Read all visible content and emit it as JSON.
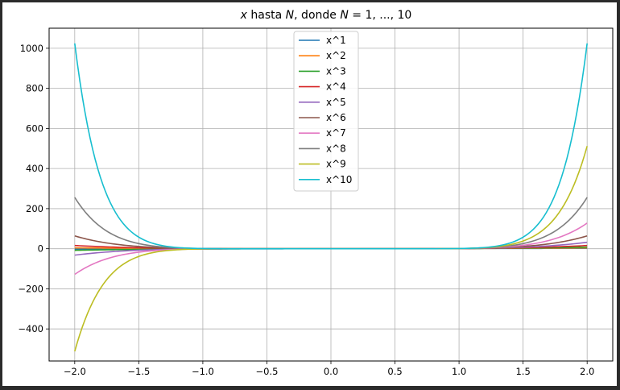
{
  "chart_data": {
    "type": "line",
    "title": {
      "var_x": "x",
      "mid1": " hasta ",
      "var_N": "N",
      "mid2": ", donde ",
      "var_N2": "N",
      "tail": " = 1, ..., 10"
    },
    "xlabel": "",
    "ylabel": "",
    "xlim": [
      -2.2,
      2.2
    ],
    "ylim": [
      -560,
      1100
    ],
    "x_range": [
      -2.0,
      2.0
    ],
    "exponents": [
      1,
      2,
      3,
      4,
      5,
      6,
      7,
      8,
      9,
      10
    ],
    "x_ticks": [
      -2.0,
      -1.5,
      -1.0,
      -0.5,
      0.0,
      0.5,
      1.0,
      1.5,
      2.0
    ],
    "x_tick_labels": [
      "−2.0",
      "−1.5",
      "−1.0",
      "−0.5",
      "0.0",
      "0.5",
      "1.0",
      "1.5",
      "2.0"
    ],
    "y_ticks": [
      -400,
      -200,
      0,
      200,
      400,
      600,
      800,
      1000
    ],
    "y_tick_labels": [
      "−400",
      "−200",
      "0",
      "200",
      "400",
      "600",
      "800",
      "1000"
    ],
    "grid": true,
    "legend_position": "top-center",
    "series": [
      {
        "name": "x^1",
        "exponent": 1,
        "color": "#1f77b4"
      },
      {
        "name": "x^2",
        "exponent": 2,
        "color": "#ff7f0e"
      },
      {
        "name": "x^3",
        "exponent": 3,
        "color": "#2ca02c"
      },
      {
        "name": "x^4",
        "exponent": 4,
        "color": "#d62728"
      },
      {
        "name": "x^5",
        "exponent": 5,
        "color": "#9467bd"
      },
      {
        "name": "x^6",
        "exponent": 6,
        "color": "#8c564b"
      },
      {
        "name": "x^7",
        "exponent": 7,
        "color": "#e377c2"
      },
      {
        "name": "x^8",
        "exponent": 8,
        "color": "#7f7f7f"
      },
      {
        "name": "x^9",
        "exponent": 9,
        "color": "#bcbd22"
      },
      {
        "name": "x^10",
        "exponent": 10,
        "color": "#17becf"
      }
    ]
  }
}
